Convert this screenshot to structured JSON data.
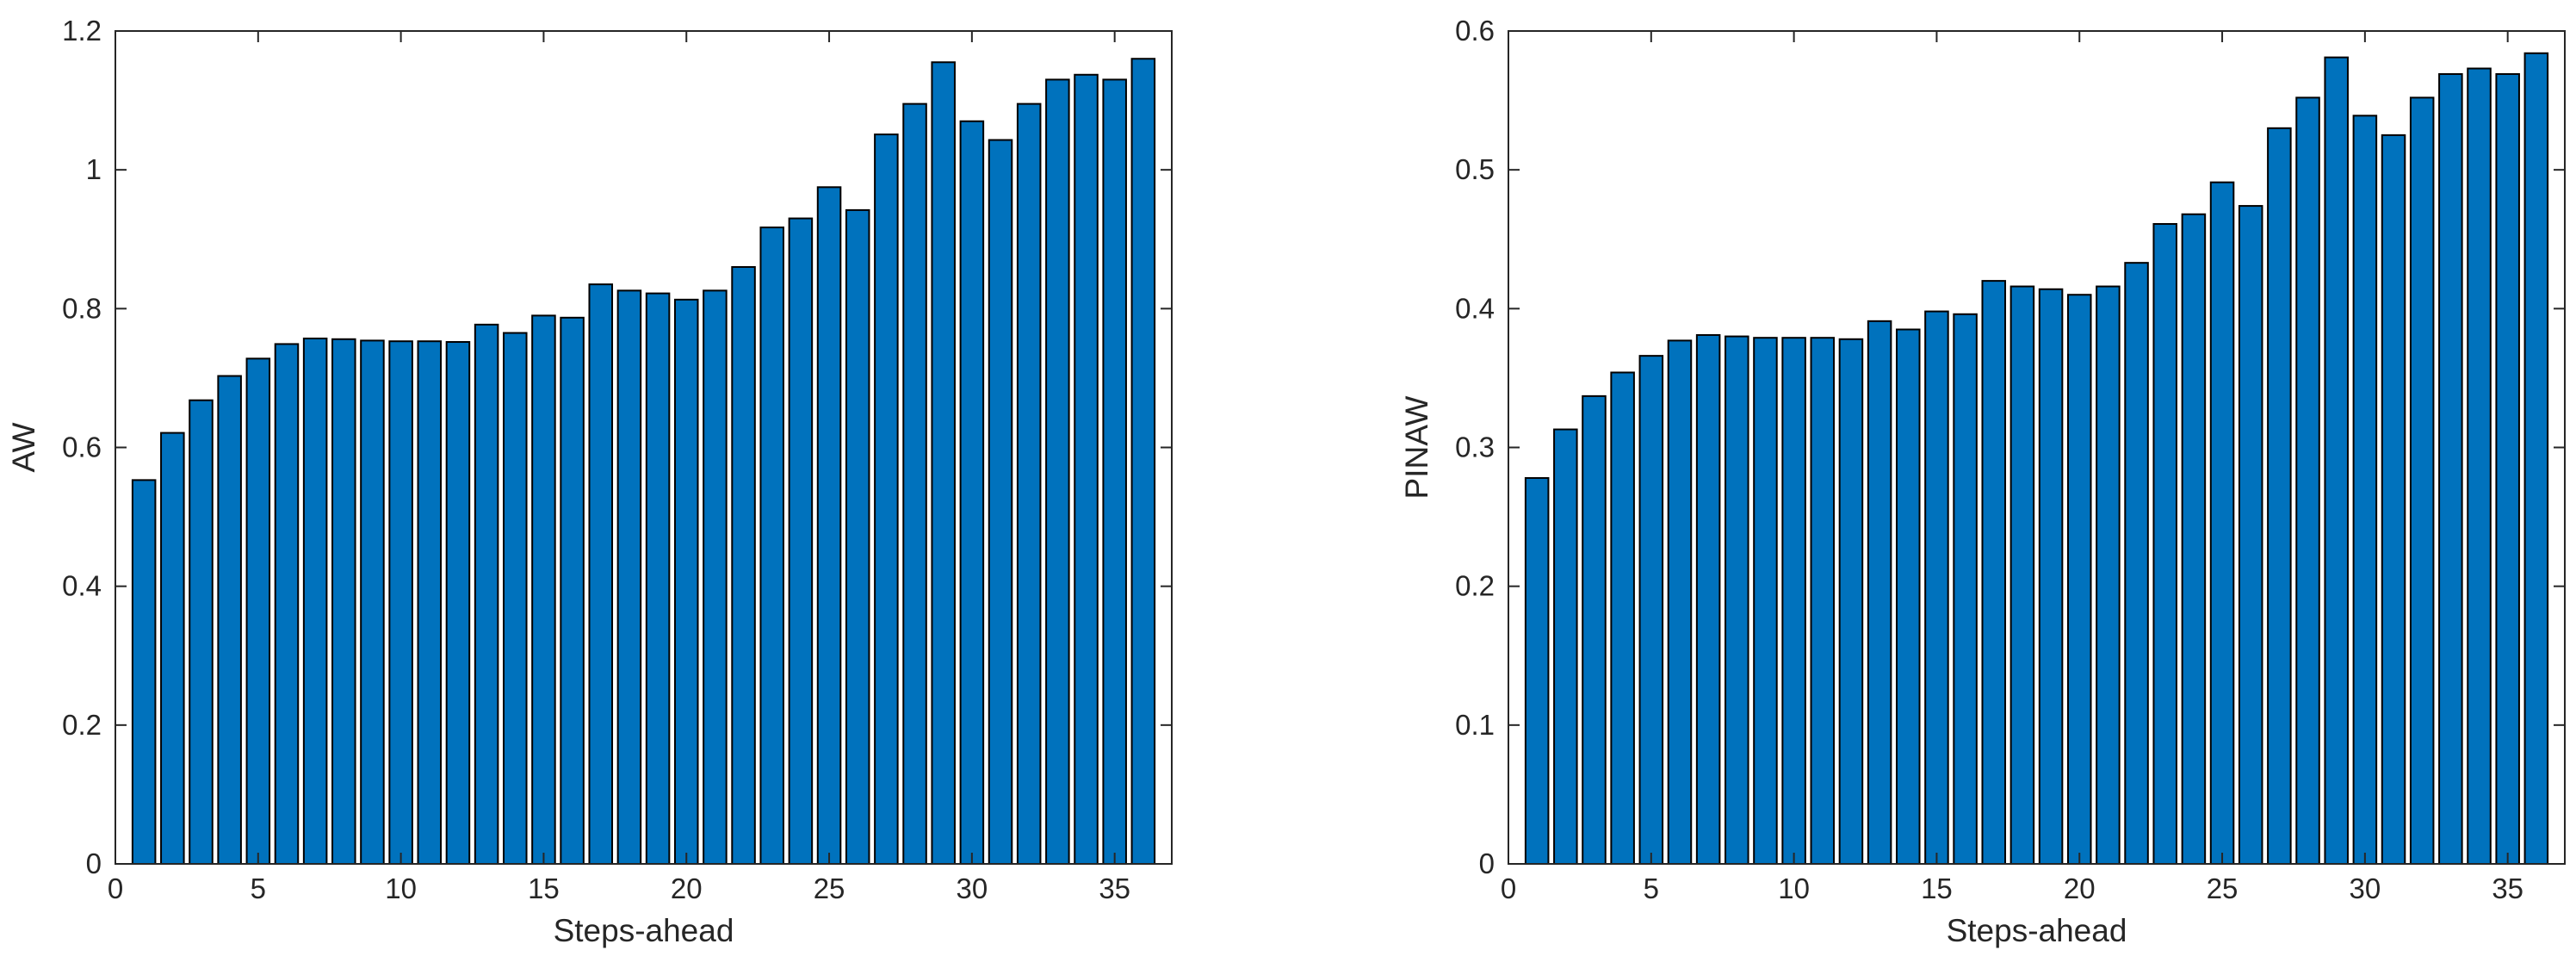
{
  "chart_data": [
    {
      "type": "bar",
      "title": "",
      "xlabel": "Steps-ahead",
      "ylabel": "AW",
      "xlim": [
        0,
        37
      ],
      "ylim": [
        0,
        1.2
      ],
      "xticks": [
        0,
        5,
        10,
        15,
        20,
        25,
        30,
        35
      ],
      "yticks": [
        0,
        0.2,
        0.4,
        0.6,
        0.8,
        1,
        1.2
      ],
      "ytick_labels": [
        "0",
        "0.2",
        "0.4",
        "0.6",
        "0.8",
        "1",
        "1.2"
      ],
      "grid": false,
      "color": "#0072BD",
      "x": [
        1,
        2,
        3,
        4,
        5,
        6,
        7,
        8,
        9,
        10,
        11,
        12,
        13,
        14,
        15,
        16,
        17,
        18,
        19,
        20,
        21,
        22,
        23,
        24,
        25,
        26,
        27,
        28,
        29,
        30,
        31,
        32,
        33,
        34,
        35,
        36
      ],
      "values": [
        0.553,
        0.621,
        0.668,
        0.703,
        0.728,
        0.749,
        0.757,
        0.756,
        0.754,
        0.753,
        0.753,
        0.752,
        0.777,
        0.765,
        0.79,
        0.787,
        0.835,
        0.826,
        0.822,
        0.813,
        0.826,
        0.86,
        0.917,
        0.93,
        0.975,
        0.942,
        1.051,
        1.095,
        1.155,
        1.07,
        1.043,
        1.095,
        1.13,
        1.137,
        1.13,
        1.16
      ]
    },
    {
      "type": "bar",
      "title": "",
      "xlabel": "Steps-ahead",
      "ylabel": "PINAW",
      "xlim": [
        0,
        37
      ],
      "ylim": [
        0,
        0.6
      ],
      "xticks": [
        0,
        5,
        10,
        15,
        20,
        25,
        30,
        35
      ],
      "yticks": [
        0,
        0.1,
        0.2,
        0.3,
        0.4,
        0.5,
        0.6
      ],
      "ytick_labels": [
        "0",
        "0.1",
        "0.2",
        "0.3",
        "0.4",
        "0.5",
        "0.6"
      ],
      "grid": false,
      "color": "#0072BD",
      "x": [
        1,
        2,
        3,
        4,
        5,
        6,
        7,
        8,
        9,
        10,
        11,
        12,
        13,
        14,
        15,
        16,
        17,
        18,
        19,
        20,
        21,
        22,
        23,
        24,
        25,
        26,
        27,
        28,
        29,
        30,
        31,
        32,
        33,
        34,
        35,
        36
      ],
      "values": [
        0.278,
        0.313,
        0.337,
        0.354,
        0.366,
        0.377,
        0.381,
        0.38,
        0.379,
        0.379,
        0.379,
        0.378,
        0.391,
        0.385,
        0.398,
        0.396,
        0.42,
        0.416,
        0.414,
        0.41,
        0.416,
        0.433,
        0.461,
        0.468,
        0.491,
        0.474,
        0.53,
        0.552,
        0.581,
        0.539,
        0.525,
        0.552,
        0.569,
        0.573,
        0.569,
        0.584
      ]
    }
  ]
}
